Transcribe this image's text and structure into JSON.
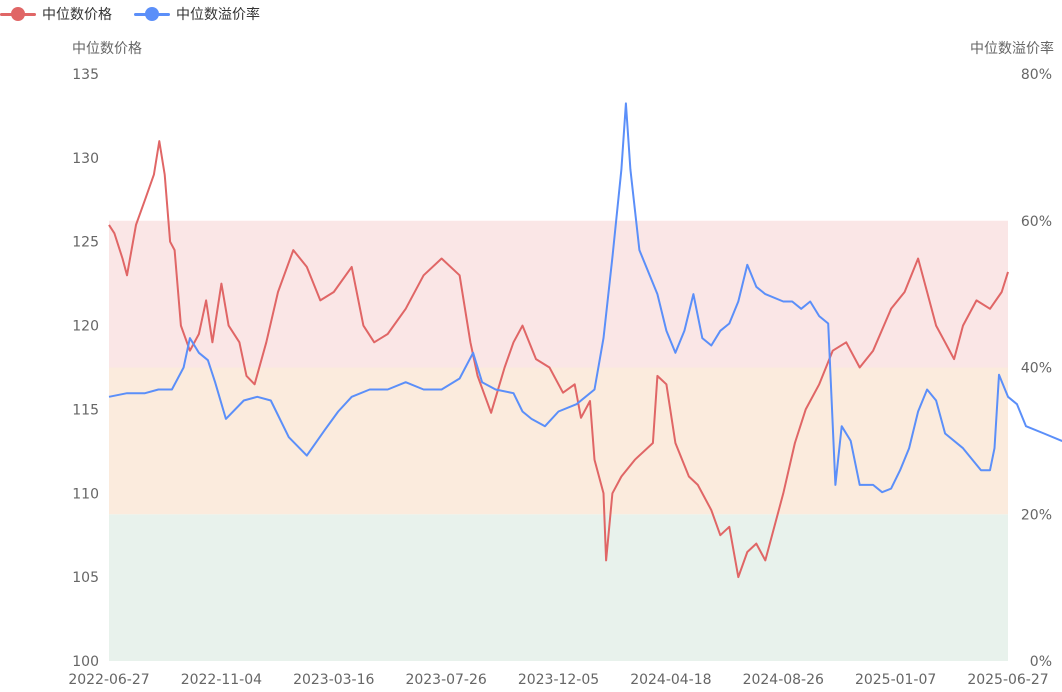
{
  "legend": [
    {
      "label": "中位数价格",
      "color": "#e06666"
    },
    {
      "label": "中位数溢价率",
      "color": "#5b8ff9"
    }
  ],
  "chart_data": {
    "type": "line",
    "title": "",
    "y_left": {
      "label": "中位数价格",
      "min": 100,
      "max": 135,
      "ticks": [
        "100",
        "105",
        "110",
        "115",
        "120",
        "125",
        "130",
        "135"
      ]
    },
    "y_right": {
      "label": "中位数溢价率",
      "min": 0,
      "max": 80,
      "ticks": [
        "0%",
        "20%",
        "40%",
        "60%",
        "80%"
      ]
    },
    "x_ticks": [
      "2022-06-27",
      "2022-11-04",
      "2023-03-16",
      "2023-07-26",
      "2023-12-05",
      "2024-04-18",
      "2024-08-26",
      "2025-01-07",
      "2025-06-27"
    ],
    "bands_right_axis": [
      {
        "from": 0,
        "to": 20,
        "color": "#e8f2ec"
      },
      {
        "from": 20,
        "to": 40,
        "color": "#fbebdd"
      },
      {
        "from": 40,
        "to": 60,
        "color": "#fae6e6"
      }
    ],
    "series": [
      {
        "name": "中位数价格",
        "axis": "left",
        "color": "#e06666",
        "points": [
          [
            0,
            126
          ],
          [
            0.6,
            125.5
          ],
          [
            1.5,
            124
          ],
          [
            2,
            123
          ],
          [
            3,
            126
          ],
          [
            4,
            127.5
          ],
          [
            5,
            129
          ],
          [
            5.6,
            131
          ],
          [
            6.2,
            129
          ],
          [
            6.8,
            125
          ],
          [
            7.3,
            124.5
          ],
          [
            8,
            120
          ],
          [
            9,
            118.5
          ],
          [
            10,
            119.5
          ],
          [
            10.8,
            121.5
          ],
          [
            11.5,
            119
          ],
          [
            12.5,
            122.5
          ],
          [
            13.3,
            120
          ],
          [
            14.5,
            119
          ],
          [
            15.3,
            117
          ],
          [
            16.2,
            116.5
          ],
          [
            17.5,
            119
          ],
          [
            18.8,
            122
          ],
          [
            20.5,
            124.5
          ],
          [
            22,
            123.5
          ],
          [
            23.5,
            121.5
          ],
          [
            25,
            122
          ],
          [
            27,
            123.5
          ],
          [
            28.3,
            120
          ],
          [
            29.5,
            119
          ],
          [
            31,
            119.5
          ],
          [
            33,
            121
          ],
          [
            35,
            123
          ],
          [
            37,
            124
          ],
          [
            39,
            123
          ],
          [
            40.2,
            119
          ],
          [
            41,
            117
          ],
          [
            42.5,
            114.8
          ],
          [
            44,
            117.5
          ],
          [
            45,
            119
          ],
          [
            46,
            120
          ],
          [
            47.5,
            118
          ],
          [
            49,
            117.5
          ],
          [
            50.5,
            116
          ],
          [
            51.8,
            116.5
          ],
          [
            52.5,
            114.5
          ],
          [
            53.5,
            115.5
          ],
          [
            54,
            112
          ],
          [
            55,
            110
          ],
          [
            55.3,
            106
          ],
          [
            56,
            110
          ],
          [
            57,
            111
          ],
          [
            58.5,
            112
          ],
          [
            60.5,
            113
          ],
          [
            61,
            117
          ],
          [
            62,
            116.5
          ],
          [
            63,
            113
          ],
          [
            64.5,
            111
          ],
          [
            65.5,
            110.5
          ],
          [
            67,
            109
          ],
          [
            68,
            107.5
          ],
          [
            69,
            108
          ],
          [
            70,
            105
          ],
          [
            71,
            106.5
          ],
          [
            72,
            107
          ],
          [
            73,
            106
          ],
          [
            73.5,
            107
          ],
          [
            75,
            110
          ],
          [
            76.3,
            113
          ],
          [
            77.5,
            115
          ],
          [
            79,
            116.5
          ],
          [
            80.5,
            118.5
          ],
          [
            82,
            119
          ],
          [
            83.5,
            117.5
          ],
          [
            85,
            118.5
          ],
          [
            87,
            121
          ],
          [
            88.5,
            122
          ],
          [
            90,
            124
          ],
          [
            91,
            122
          ],
          [
            92,
            120
          ],
          [
            93,
            119
          ],
          [
            94,
            118
          ],
          [
            95,
            120
          ],
          [
            96.5,
            121.5
          ],
          [
            98,
            121
          ],
          [
            99.3,
            122
          ],
          [
            100,
            123.2
          ]
        ]
      },
      {
        "name": "中位数溢价率",
        "axis": "right",
        "color": "#5b8ff9",
        "points": [
          [
            0,
            36
          ],
          [
            2,
            36.5
          ],
          [
            4,
            36.5
          ],
          [
            5.5,
            37
          ],
          [
            7,
            37
          ],
          [
            8.3,
            40
          ],
          [
            9,
            44
          ],
          [
            10,
            42
          ],
          [
            11,
            41
          ],
          [
            11.8,
            38
          ],
          [
            13,
            33
          ],
          [
            15,
            35.5
          ],
          [
            16.5,
            36
          ],
          [
            18,
            35.5
          ],
          [
            20,
            30.5
          ],
          [
            22,
            28
          ],
          [
            24,
            31.5
          ],
          [
            25.5,
            34
          ],
          [
            27,
            36
          ],
          [
            29,
            37
          ],
          [
            31,
            37
          ],
          [
            33,
            38
          ],
          [
            35,
            37
          ],
          [
            37,
            37
          ],
          [
            39,
            38.5
          ],
          [
            40.5,
            42
          ],
          [
            41.5,
            38
          ],
          [
            43,
            37
          ],
          [
            45,
            36.5
          ],
          [
            46,
            34
          ],
          [
            47,
            33
          ],
          [
            48.5,
            32
          ],
          [
            50,
            34
          ],
          [
            52,
            35
          ],
          [
            54,
            37
          ],
          [
            55,
            44
          ],
          [
            56,
            55
          ],
          [
            57,
            67
          ],
          [
            57.5,
            76
          ],
          [
            58,
            67
          ],
          [
            59,
            56
          ],
          [
            61,
            50
          ],
          [
            62,
            45
          ],
          [
            63,
            42
          ],
          [
            64,
            45
          ],
          [
            65,
            50
          ],
          [
            66,
            44
          ],
          [
            67,
            43
          ],
          [
            68,
            45
          ],
          [
            69,
            46
          ],
          [
            70,
            49
          ],
          [
            71,
            54
          ],
          [
            72,
            51
          ],
          [
            73,
            50
          ],
          [
            75,
            49
          ],
          [
            76,
            49
          ],
          [
            77,
            48
          ],
          [
            78,
            49
          ],
          [
            79,
            47
          ],
          [
            80,
            46
          ],
          [
            80.8,
            24
          ],
          [
            81.5,
            32
          ],
          [
            82.5,
            30
          ],
          [
            83.5,
            24
          ],
          [
            85,
            24
          ],
          [
            86,
            23
          ],
          [
            87,
            23.5
          ],
          [
            88,
            26
          ],
          [
            89,
            29
          ],
          [
            90,
            34
          ],
          [
            91,
            37
          ],
          [
            92,
            35.5
          ],
          [
            93,
            31
          ],
          [
            95,
            29
          ],
          [
            97,
            26
          ],
          [
            98,
            26
          ],
          [
            98.5,
            29
          ],
          [
            99,
            39
          ],
          [
            100,
            36
          ],
          [
            101,
            35
          ],
          [
            102,
            32
          ],
          [
            104,
            31
          ],
          [
            106,
            30
          ],
          [
            108,
            31
          ],
          [
            110,
            30.5
          ]
        ]
      }
    ]
  }
}
